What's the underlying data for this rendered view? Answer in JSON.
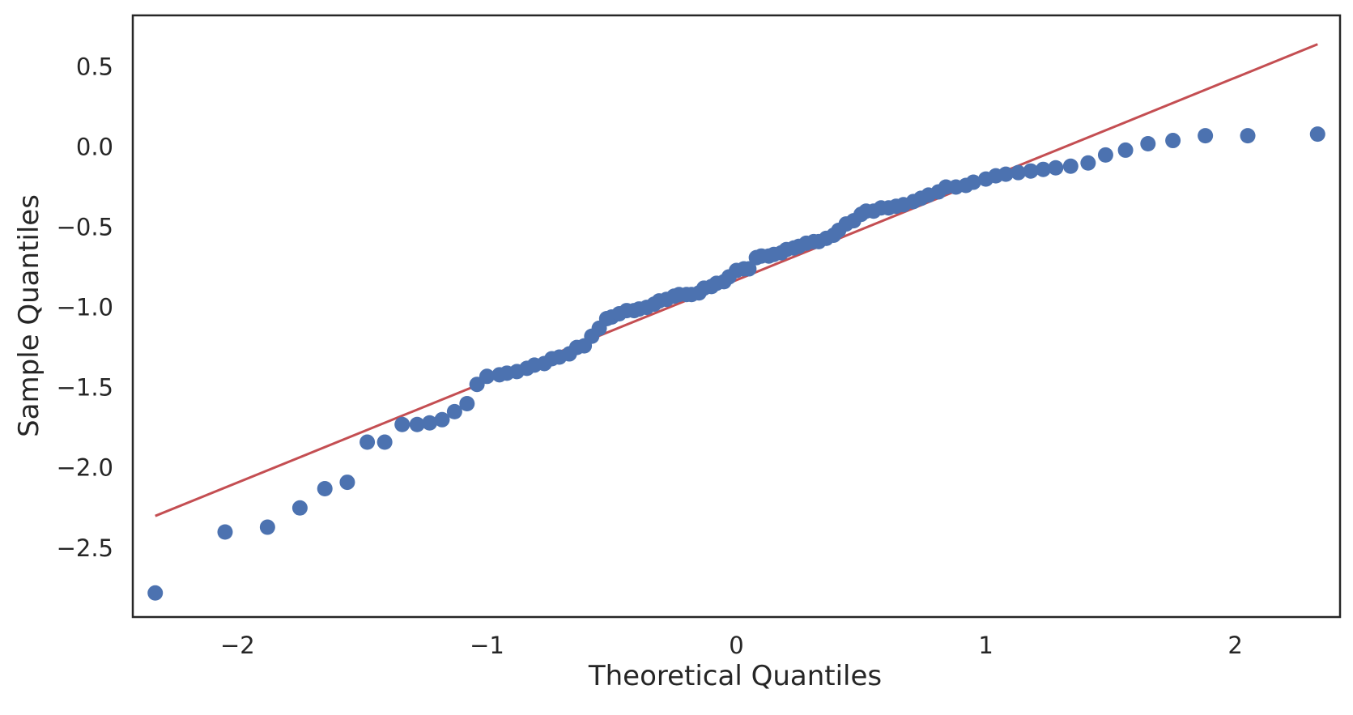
{
  "chart_data": {
    "type": "scatter",
    "title": "",
    "xlabel": "Theoretical Quantiles",
    "ylabel": "Sample Quantiles",
    "xlim": [
      -2.42,
      2.42
    ],
    "ylim": [
      -2.93,
      0.82
    ],
    "grid": false,
    "legend": "none",
    "x_ticks": [
      -2,
      -1,
      0,
      1,
      2
    ],
    "x_tick_labels": [
      "−2",
      "−1",
      "0",
      "1",
      "2"
    ],
    "y_ticks": [
      0.5,
      0.0,
      -0.5,
      -1.0,
      -1.5,
      -2.0,
      -2.5
    ],
    "y_tick_labels": [
      "0.5",
      "0.0",
      "−0.5",
      "−1.0",
      "−1.5",
      "−2.0",
      "−2.5"
    ],
    "colors": {
      "points": "#4c72b0",
      "line": "#c44e52",
      "frame": "#262626",
      "text": "#262626"
    },
    "reference_line": {
      "x": [
        -2.33,
        2.33
      ],
      "y": [
        -2.3,
        0.64
      ]
    },
    "points": [
      [
        -2.33,
        -2.78
      ],
      [
        -2.05,
        -2.4
      ],
      [
        -1.88,
        -2.37
      ],
      [
        -1.75,
        -2.25
      ],
      [
        -1.65,
        -2.13
      ],
      [
        -1.56,
        -2.09
      ],
      [
        -1.48,
        -1.84
      ],
      [
        -1.41,
        -1.84
      ],
      [
        -1.34,
        -1.73
      ],
      [
        -1.28,
        -1.73
      ],
      [
        -1.23,
        -1.72
      ],
      [
        -1.18,
        -1.7
      ],
      [
        -1.13,
        -1.65
      ],
      [
        -1.08,
        -1.6
      ],
      [
        -1.04,
        -1.48
      ],
      [
        -1.0,
        -1.43
      ],
      [
        -0.95,
        -1.42
      ],
      [
        -0.92,
        -1.41
      ],
      [
        -0.88,
        -1.4
      ],
      [
        -0.84,
        -1.38
      ],
      [
        -0.81,
        -1.36
      ],
      [
        -0.77,
        -1.35
      ],
      [
        -0.74,
        -1.32
      ],
      [
        -0.71,
        -1.31
      ],
      [
        -0.67,
        -1.29
      ],
      [
        -0.64,
        -1.25
      ],
      [
        -0.61,
        -1.24
      ],
      [
        -0.58,
        -1.18
      ],
      [
        -0.55,
        -1.13
      ],
      [
        -0.52,
        -1.07
      ],
      [
        -0.5,
        -1.06
      ],
      [
        -0.47,
        -1.04
      ],
      [
        -0.44,
        -1.02
      ],
      [
        -0.41,
        -1.02
      ],
      [
        -0.39,
        -1.01
      ],
      [
        -0.36,
        -1.0
      ],
      [
        -0.33,
        -0.98
      ],
      [
        -0.31,
        -0.96
      ],
      [
        -0.28,
        -0.95
      ],
      [
        -0.25,
        -0.93
      ],
      [
        -0.23,
        -0.92
      ],
      [
        -0.2,
        -0.92
      ],
      [
        -0.18,
        -0.92
      ],
      [
        -0.15,
        -0.91
      ],
      [
        -0.13,
        -0.88
      ],
      [
        -0.1,
        -0.87
      ],
      [
        -0.08,
        -0.85
      ],
      [
        -0.05,
        -0.84
      ],
      [
        -0.03,
        -0.81
      ],
      [
        0.0,
        -0.77
      ],
      [
        0.03,
        -0.76
      ],
      [
        0.05,
        -0.76
      ],
      [
        0.08,
        -0.69
      ],
      [
        0.1,
        -0.68
      ],
      [
        0.13,
        -0.68
      ],
      [
        0.15,
        -0.67
      ],
      [
        0.18,
        -0.66
      ],
      [
        0.2,
        -0.64
      ],
      [
        0.23,
        -0.63
      ],
      [
        0.25,
        -0.62
      ],
      [
        0.28,
        -0.6
      ],
      [
        0.31,
        -0.59
      ],
      [
        0.33,
        -0.59
      ],
      [
        0.36,
        -0.57
      ],
      [
        0.39,
        -0.55
      ],
      [
        0.41,
        -0.52
      ],
      [
        0.44,
        -0.48
      ],
      [
        0.47,
        -0.46
      ],
      [
        0.5,
        -0.42
      ],
      [
        0.52,
        -0.4
      ],
      [
        0.55,
        -0.4
      ],
      [
        0.58,
        -0.38
      ],
      [
        0.61,
        -0.38
      ],
      [
        0.64,
        -0.37
      ],
      [
        0.67,
        -0.36
      ],
      [
        0.71,
        -0.34
      ],
      [
        0.74,
        -0.32
      ],
      [
        0.77,
        -0.3
      ],
      [
        0.81,
        -0.28
      ],
      [
        0.84,
        -0.25
      ],
      [
        0.88,
        -0.25
      ],
      [
        0.92,
        -0.24
      ],
      [
        0.95,
        -0.22
      ],
      [
        1.0,
        -0.2
      ],
      [
        1.04,
        -0.18
      ],
      [
        1.08,
        -0.17
      ],
      [
        1.13,
        -0.16
      ],
      [
        1.18,
        -0.15
      ],
      [
        1.23,
        -0.14
      ],
      [
        1.28,
        -0.13
      ],
      [
        1.34,
        -0.12
      ],
      [
        1.41,
        -0.1
      ],
      [
        1.48,
        -0.05
      ],
      [
        1.56,
        -0.02
      ],
      [
        1.65,
        0.02
      ],
      [
        1.75,
        0.04
      ],
      [
        1.88,
        0.07
      ],
      [
        2.05,
        0.07
      ],
      [
        2.33,
        0.08
      ]
    ]
  }
}
